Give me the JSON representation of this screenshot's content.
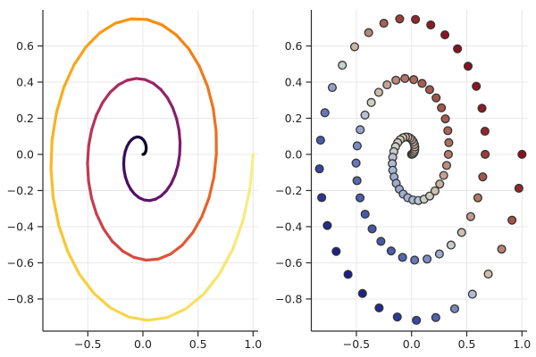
{
  "figure": {
    "background": "#ffffff",
    "title": "",
    "grid_color": "#e8e8e8",
    "spine_color": "#2a2a2a",
    "tick_label_color": "#1f1f1f"
  },
  "chart_data": [
    {
      "type": "line",
      "name": "spiral-line-plot",
      "description": "Archimedean spiral polyline, color varies along the curve by parameter t",
      "parametric": {
        "t_min": 0,
        "t_max": 18.8495559,
        "n_points": 100,
        "r_formula": "t / t_max",
        "x_formula": "r * cos(t)",
        "y_formula": "r * sin(t)"
      },
      "color_by": "t",
      "line_width": 3.2,
      "colormap": {
        "name": "inferno",
        "stops": [
          [
            0.0,
            "#000004"
          ],
          [
            0.125,
            "#210c4a"
          ],
          [
            0.25,
            "#57106e"
          ],
          [
            0.375,
            "#89226a"
          ],
          [
            0.5,
            "#bc3754"
          ],
          [
            0.625,
            "#e45a31"
          ],
          [
            0.75,
            "#f98e09"
          ],
          [
            0.875,
            "#f9cb35"
          ],
          [
            1.0,
            "#f6f088"
          ]
        ]
      },
      "xlim": [
        -0.908,
        1.046
      ],
      "ylim": [
        -0.978,
        0.8
      ],
      "grid": true,
      "legend": "none",
      "xticks": {
        "values": [
          -0.5,
          0.0,
          0.5,
          1.0
        ],
        "labels": [
          "−0.5",
          "0.0",
          "0.5",
          "1.0"
        ]
      },
      "yticks": {
        "values": [
          0.6,
          0.4,
          0.2,
          0.0,
          -0.2,
          -0.4,
          -0.6,
          -0.8
        ],
        "labels": [
          "0.6",
          "0.4",
          "0.2",
          "0.0",
          "−0.2",
          "−0.4",
          "−0.6",
          "−0.8"
        ]
      }
    },
    {
      "type": "scatter",
      "name": "spiral-scatter-plot",
      "description": "Same Archimedean spiral as circular markers, fill color mapped to x + y",
      "parametric": {
        "t_min": 0,
        "t_max": 18.8495559,
        "n_points": 100,
        "r_formula": "t / t_max",
        "x_formula": "r * cos(t)",
        "y_formula": "r * sin(t)"
      },
      "color_by": "x + y",
      "marker": {
        "radius": 4.4,
        "stroke": "#333333",
        "stroke_width": 1.3
      },
      "colormap": {
        "name": "diverging-blue-red",
        "stops": [
          [
            0.0,
            "#1c2088"
          ],
          [
            0.125,
            "#31409f"
          ],
          [
            0.25,
            "#4f62af"
          ],
          [
            0.375,
            "#8494c6"
          ],
          [
            0.45,
            "#aebad3"
          ],
          [
            0.5,
            "#ccd3cb"
          ],
          [
            0.55,
            "#cfc7b2"
          ],
          [
            0.625,
            "#c3a294"
          ],
          [
            0.7,
            "#b27c6e"
          ],
          [
            0.8,
            "#a35146"
          ],
          [
            0.9,
            "#93282b"
          ],
          [
            1.0,
            "#8a101f"
          ]
        ]
      },
      "xlim": [
        -0.908,
        1.046
      ],
      "ylim": [
        -0.978,
        0.8
      ],
      "grid": true,
      "legend": "none",
      "xticks": {
        "values": [
          -0.5,
          0.0,
          0.5,
          1.0
        ],
        "labels": [
          "−0.5",
          "0.0",
          "0.5",
          "1.0"
        ]
      },
      "yticks": {
        "values": [
          0.6,
          0.4,
          0.2,
          0.0,
          -0.2,
          -0.4,
          -0.6,
          -0.8
        ],
        "labels": [
          "0.6",
          "0.4",
          "0.2",
          "0.0",
          "−0.2",
          "−0.4",
          "−0.6",
          "−0.8"
        ]
      }
    }
  ]
}
